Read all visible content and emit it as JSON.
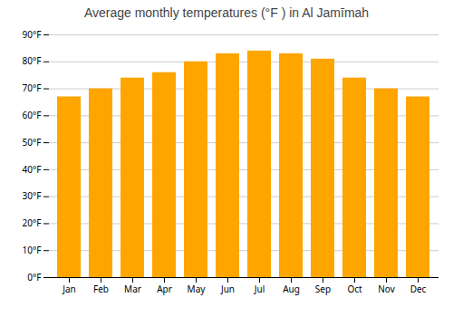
{
  "chart_data": {
    "type": "bar",
    "title": "Average monthly temperatures (°F ) in Al Jamīmah",
    "categories": [
      "Jan",
      "Feb",
      "Mar",
      "Apr",
      "May",
      "Jun",
      "Jul",
      "Aug",
      "Sep",
      "Oct",
      "Nov",
      "Dec"
    ],
    "values": [
      67,
      70,
      74,
      76,
      80,
      83,
      84,
      83,
      81,
      74,
      70,
      67
    ],
    "color": "#FFA500",
    "ylim": [
      0,
      90
    ],
    "yticks": [
      {
        "value": 0,
        "label": "0°F"
      },
      {
        "value": 10,
        "label": "10°F"
      },
      {
        "value": 20,
        "label": "20°F"
      },
      {
        "value": 30,
        "label": "30°F"
      },
      {
        "value": 40,
        "label": "40°F"
      },
      {
        "value": 50,
        "label": "50°F"
      },
      {
        "value": 60,
        "label": "60°F"
      },
      {
        "value": 70,
        "label": "70°F"
      },
      {
        "value": 80,
        "label": "80°F"
      },
      {
        "value": 90,
        "label": "90°F"
      }
    ],
    "grid": true
  }
}
